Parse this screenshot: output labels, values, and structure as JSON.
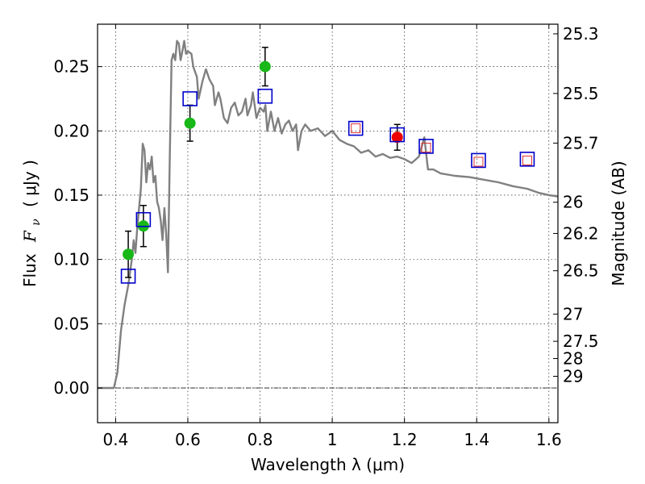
{
  "chart_data": {
    "type": "scatter",
    "xlabel": "Wavelength  λ (μm)",
    "ylabel_text": "Flux",
    "ylabel_symbol": "F",
    "ylabel_subscript": "ν",
    "ylabel_unit": "( μJy )",
    "y2label": "Magnitude (AB)",
    "xlim": [
      0.35,
      1.625
    ],
    "ylim": [
      -0.027,
      0.283
    ],
    "grid": true,
    "xticks": [
      {
        "value": 0.4,
        "label": "0.4"
      },
      {
        "value": 0.6,
        "label": "0.6"
      },
      {
        "value": 0.8,
        "label": "0.8"
      },
      {
        "value": 1.0,
        "label": "1"
      },
      {
        "value": 1.2,
        "label": "1.2"
      },
      {
        "value": 1.4,
        "label": "1.4"
      },
      {
        "value": 1.6,
        "label": "1.6"
      }
    ],
    "yticks": [
      {
        "value": 0.0,
        "label": "0.00"
      },
      {
        "value": 0.05,
        "label": "0.05"
      },
      {
        "value": 0.1,
        "label": "0.10"
      },
      {
        "value": 0.15,
        "label": "0.15"
      },
      {
        "value": 0.2,
        "label": "0.20"
      },
      {
        "value": 0.25,
        "label": "0.25"
      }
    ],
    "y2ticks": [
      {
        "flux": 0.2755,
        "label": "25.3"
      },
      {
        "flux": 0.2291,
        "label": "25.5"
      },
      {
        "flux": 0.1905,
        "label": "25.7"
      },
      {
        "flux": 0.1445,
        "label": "26"
      },
      {
        "flux": 0.1202,
        "label": "26.2"
      },
      {
        "flux": 0.0912,
        "label": "26.5"
      },
      {
        "flux": 0.0575,
        "label": "27"
      },
      {
        "flux": 0.0363,
        "label": "27.5"
      },
      {
        "flux": 0.0229,
        "label": "28"
      },
      {
        "flux": 0.0091,
        "label": "29"
      }
    ],
    "series": [
      {
        "kind": "line",
        "color": "#808080",
        "points": [
          [
            0.35,
            0.0
          ],
          [
            0.395,
            0.0
          ],
          [
            0.405,
            0.012
          ],
          [
            0.415,
            0.045
          ],
          [
            0.425,
            0.065
          ],
          [
            0.435,
            0.08
          ],
          [
            0.445,
            0.1
          ],
          [
            0.45,
            0.115
          ],
          [
            0.455,
            0.105
          ],
          [
            0.46,
            0.125
          ],
          [
            0.465,
            0.14
          ],
          [
            0.47,
            0.155
          ],
          [
            0.475,
            0.19
          ],
          [
            0.48,
            0.185
          ],
          [
            0.485,
            0.16
          ],
          [
            0.49,
            0.175
          ],
          [
            0.495,
            0.17
          ],
          [
            0.5,
            0.18
          ],
          [
            0.505,
            0.16
          ],
          [
            0.51,
            0.165
          ],
          [
            0.515,
            0.145
          ],
          [
            0.52,
            0.14
          ],
          [
            0.525,
            0.13
          ],
          [
            0.53,
            0.115
          ],
          [
            0.535,
            0.14
          ],
          [
            0.54,
            0.12
          ],
          [
            0.545,
            0.09
          ],
          [
            0.55,
            0.18
          ],
          [
            0.555,
            0.255
          ],
          [
            0.56,
            0.26
          ],
          [
            0.565,
            0.255
          ],
          [
            0.57,
            0.27
          ],
          [
            0.575,
            0.268
          ],
          [
            0.58,
            0.255
          ],
          [
            0.585,
            0.262
          ],
          [
            0.59,
            0.27
          ],
          [
            0.595,
            0.26
          ],
          [
            0.6,
            0.262
          ],
          [
            0.61,
            0.26
          ],
          [
            0.615,
            0.25
          ],
          [
            0.625,
            0.242
          ],
          [
            0.63,
            0.225
          ],
          [
            0.64,
            0.238
          ],
          [
            0.65,
            0.248
          ],
          [
            0.66,
            0.24
          ],
          [
            0.67,
            0.235
          ],
          [
            0.675,
            0.22
          ],
          [
            0.685,
            0.23
          ],
          [
            0.69,
            0.225
          ],
          [
            0.7,
            0.21
          ],
          [
            0.71,
            0.206
          ],
          [
            0.72,
            0.218
          ],
          [
            0.73,
            0.222
          ],
          [
            0.74,
            0.212
          ],
          [
            0.75,
            0.215
          ],
          [
            0.76,
            0.225
          ],
          [
            0.765,
            0.212
          ],
          [
            0.775,
            0.22
          ],
          [
            0.78,
            0.23
          ],
          [
            0.79,
            0.21
          ],
          [
            0.8,
            0.218
          ],
          [
            0.81,
            0.215
          ],
          [
            0.815,
            0.22
          ],
          [
            0.82,
            0.2
          ],
          [
            0.83,
            0.215
          ],
          [
            0.84,
            0.2
          ],
          [
            0.85,
            0.21
          ],
          [
            0.86,
            0.198
          ],
          [
            0.87,
            0.205
          ],
          [
            0.88,
            0.208
          ],
          [
            0.89,
            0.2
          ],
          [
            0.9,
            0.205
          ],
          [
            0.905,
            0.185
          ],
          [
            0.915,
            0.2
          ],
          [
            0.925,
            0.205
          ],
          [
            0.94,
            0.2
          ],
          [
            0.96,
            0.202
          ],
          [
            0.98,
            0.196
          ],
          [
            1.0,
            0.2
          ],
          [
            1.02,
            0.193
          ],
          [
            1.04,
            0.19
          ],
          [
            1.06,
            0.188
          ],
          [
            1.08,
            0.183
          ],
          [
            1.1,
            0.185
          ],
          [
            1.12,
            0.18
          ],
          [
            1.14,
            0.182
          ],
          [
            1.16,
            0.179
          ],
          [
            1.18,
            0.18
          ],
          [
            1.2,
            0.178
          ],
          [
            1.22,
            0.175
          ],
          [
            1.24,
            0.18
          ],
          [
            1.255,
            0.195
          ],
          [
            1.265,
            0.17
          ],
          [
            1.28,
            0.17
          ],
          [
            1.3,
            0.167
          ],
          [
            1.34,
            0.165
          ],
          [
            1.38,
            0.164
          ],
          [
            1.42,
            0.162
          ],
          [
            1.46,
            0.16
          ],
          [
            1.5,
            0.157
          ],
          [
            1.54,
            0.155
          ],
          [
            1.57,
            0.152
          ],
          [
            1.6,
            0.15
          ],
          [
            1.625,
            0.149
          ]
        ]
      },
      {
        "kind": "scatter",
        "marker": "circle",
        "color": "#18b818",
        "errorbars": true,
        "points": [
          {
            "x": 0.435,
            "y": 0.104,
            "err": 0.018
          },
          {
            "x": 0.477,
            "y": 0.126,
            "err": 0.016
          },
          {
            "x": 0.606,
            "y": 0.206,
            "err": 0.014
          },
          {
            "x": 0.814,
            "y": 0.25,
            "err": 0.015
          }
        ]
      },
      {
        "kind": "scatter",
        "marker": "circle",
        "color": "#ee0000",
        "errorbars": true,
        "points": [
          {
            "x": 1.18,
            "y": 0.195,
            "err": 0.01
          }
        ]
      },
      {
        "kind": "scatter",
        "marker": "square-open",
        "color": "#0000cc",
        "points": [
          {
            "x": 0.435,
            "y": 0.087
          },
          {
            "x": 0.477,
            "y": 0.131
          },
          {
            "x": 0.606,
            "y": 0.225
          },
          {
            "x": 0.814,
            "y": 0.227
          },
          {
            "x": 1.065,
            "y": 0.202
          },
          {
            "x": 1.18,
            "y": 0.197
          },
          {
            "x": 1.26,
            "y": 0.188
          },
          {
            "x": 1.405,
            "y": 0.177
          },
          {
            "x": 1.54,
            "y": 0.178
          }
        ]
      },
      {
        "kind": "scatter",
        "marker": "square-open-small",
        "color": "#dd3333",
        "points": [
          {
            "x": 1.065,
            "y": 0.202
          },
          {
            "x": 1.26,
            "y": 0.187
          },
          {
            "x": 1.405,
            "y": 0.176
          },
          {
            "x": 1.54,
            "y": 0.177
          }
        ]
      }
    ]
  }
}
